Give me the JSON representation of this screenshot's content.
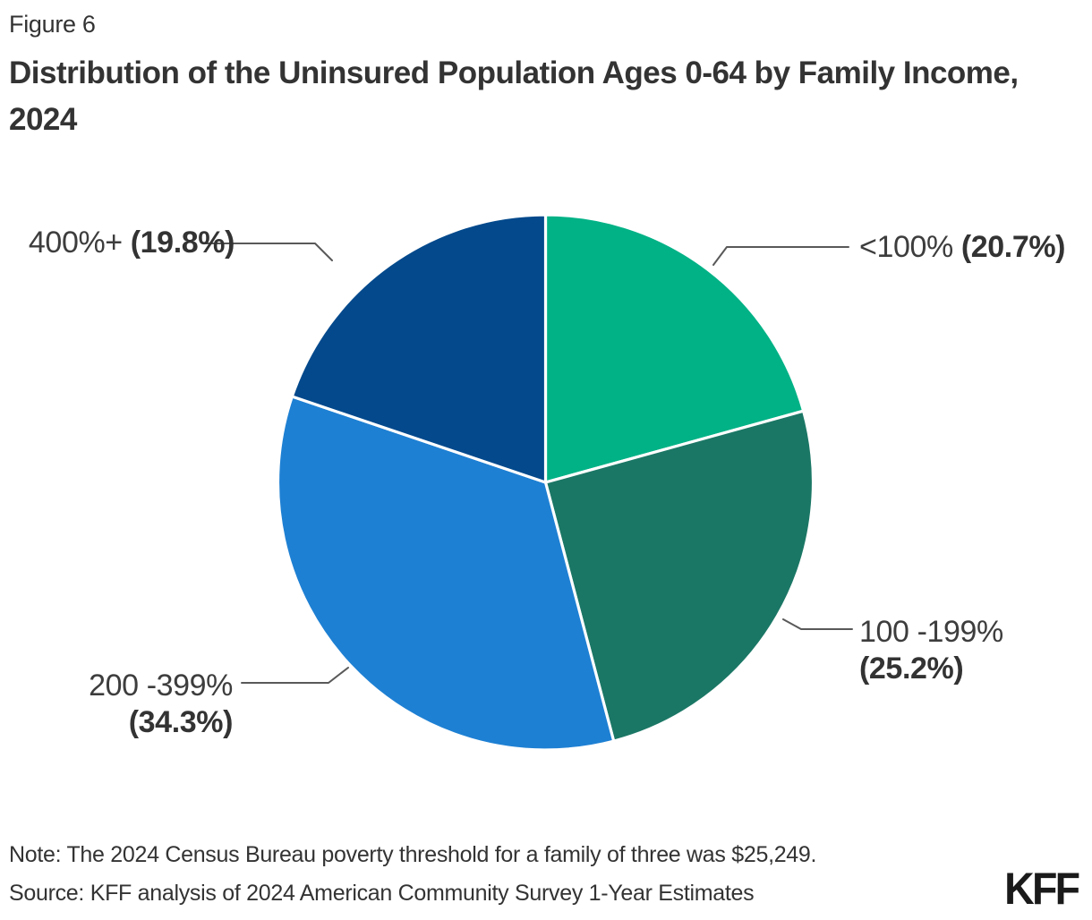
{
  "page": {
    "background": "#ffffff",
    "text_color": "#333333"
  },
  "header": {
    "figure_label": "Figure 6",
    "title": "Distribution of the Uninsured Population Ages 0-64 by Family Income, 2024"
  },
  "chart_data": {
    "type": "pie",
    "title": "Distribution of the Uninsured Population Ages 0-64 by Family Income, 2024",
    "categories": [
      "<100%",
      "100 -199%",
      "200 -399%",
      "400%+"
    ],
    "values": [
      20.7,
      25.2,
      34.3,
      19.8
    ],
    "unit": "%",
    "colors": [
      "#00b286",
      "#1b7765",
      "#1e80d3",
      "#03498c"
    ],
    "start_angle_deg": 0,
    "direction": "clockwise",
    "slice_border_color": "#ffffff",
    "leader_line_color": "#595959",
    "legend_position": "callout-labels"
  },
  "slice_labels": {
    "under100": {
      "range": "<100%",
      "pct": "(20.7%)"
    },
    "from100to199": {
      "range": "100 -199%",
      "pct": "(25.2%)"
    },
    "from200to399": {
      "range": "200 -399%",
      "pct": "(34.3%)"
    },
    "over400": {
      "range": "400%+",
      "pct": "(19.8%)"
    }
  },
  "footer": {
    "note": "Note: The 2024 Census Bureau poverty threshold for a family of three was $25,249.",
    "source": "Source: KFF analysis of 2024 American Community Survey 1-Year Estimates",
    "logo_text": "KFF"
  }
}
